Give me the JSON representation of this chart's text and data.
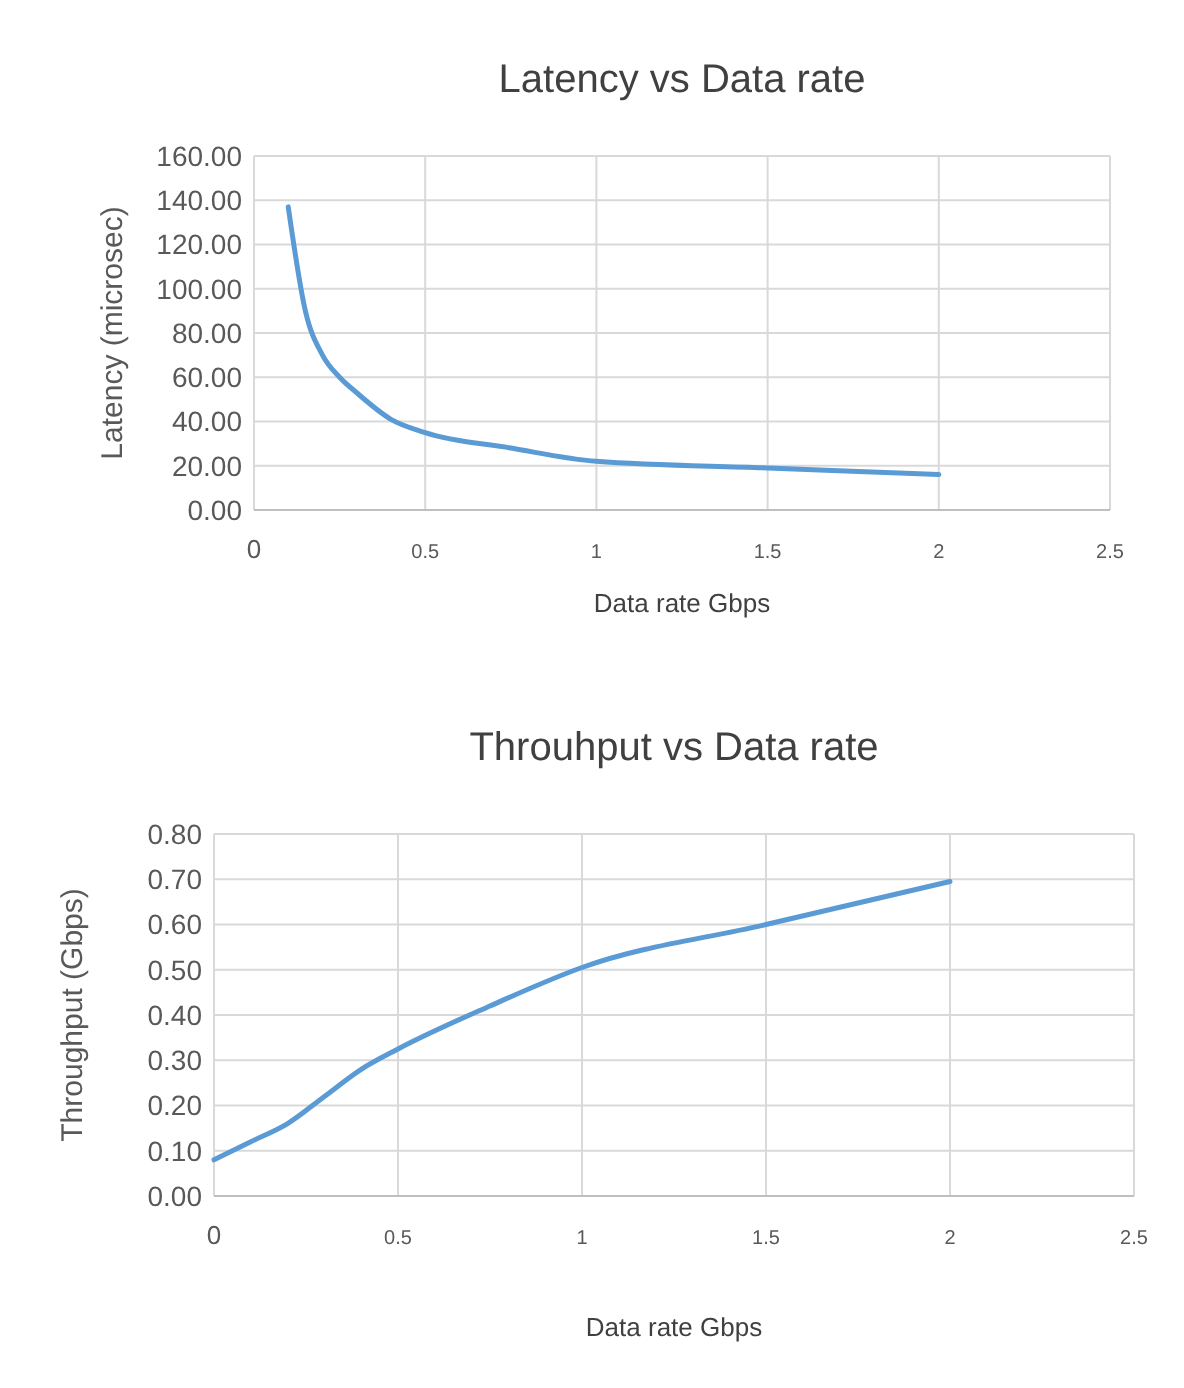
{
  "chart_data": [
    {
      "type": "line",
      "title": "Latency vs Data rate",
      "xlabel": "Data rate Gbps",
      "ylabel": "Latency (microsec)",
      "x": [
        0.1,
        0.15,
        0.2,
        0.25,
        0.3,
        0.4,
        0.5,
        0.75,
        1,
        1.5,
        2
      ],
      "series": [
        {
          "color": "#5b9bd5",
          "values": [
            137,
            90,
            70,
            60,
            53,
            41,
            35,
            28,
            22,
            19,
            16
          ]
        }
      ],
      "xlim": [
        0,
        2.5
      ],
      "xticks": [
        0,
        0.5,
        1,
        1.5,
        2,
        2.5
      ],
      "ylim": [
        0,
        160
      ],
      "yticks": [
        {
          "value": 0,
          "label": "0.00"
        },
        {
          "value": 20,
          "label": "20.00"
        },
        {
          "value": 40,
          "label": "40.00"
        },
        {
          "value": 60,
          "label": "60.00"
        },
        {
          "value": 80,
          "label": "80.00"
        },
        {
          "value": 100,
          "label": "100.00"
        },
        {
          "value": 120,
          "label": "120.00"
        },
        {
          "value": 140,
          "label": "140.00"
        },
        {
          "value": 160,
          "label": "160.00"
        }
      ],
      "grid": true,
      "marker": "none",
      "line_style": "solid"
    },
    {
      "type": "line",
      "title": "Throuhput vs Data rate",
      "xlabel": "Data rate Gbps",
      "ylabel": "Throughput (Gbps)",
      "x": [
        0,
        0.1,
        0.2,
        0.3,
        0.4,
        0.5,
        0.75,
        1,
        1.5,
        2
      ],
      "series": [
        {
          "color": "#5b9bd5",
          "values": [
            0.08,
            0.12,
            0.16,
            0.22,
            0.28,
            0.325,
            0.42,
            0.505,
            0.6,
            0.695
          ]
        }
      ],
      "xlim": [
        0,
        2.5
      ],
      "xticks": [
        0,
        0.5,
        1,
        1.5,
        2,
        2.5
      ],
      "ylim": [
        0,
        0.8
      ],
      "yticks": [
        {
          "value": 0,
          "label": "0.00"
        },
        {
          "value": 0.1,
          "label": "0.10"
        },
        {
          "value": 0.2,
          "label": "0.20"
        },
        {
          "value": 0.3,
          "label": "0.30"
        },
        {
          "value": 0.4,
          "label": "0.40"
        },
        {
          "value": 0.5,
          "label": "0.50"
        },
        {
          "value": 0.6,
          "label": "0.60"
        },
        {
          "value": 0.7,
          "label": "0.70"
        },
        {
          "value": 0.8,
          "label": "0.80"
        }
      ],
      "grid": true,
      "marker": "none",
      "line_style": "solid"
    }
  ]
}
